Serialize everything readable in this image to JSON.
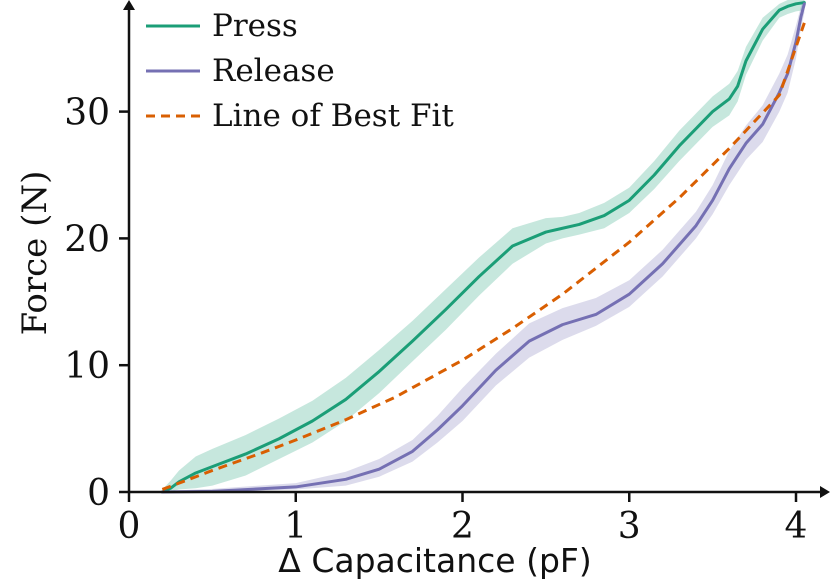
{
  "chart_data": {
    "type": "line",
    "title": "",
    "xlabel": "Δ Capacitance (pF)",
    "ylabel": "Force (N)",
    "xlim": [
      0,
      4.2
    ],
    "ylim": [
      0,
      38.5
    ],
    "xticks": [
      0,
      1,
      2,
      3,
      4
    ],
    "yticks": [
      0,
      10,
      20,
      30
    ],
    "grid": false,
    "legend_position": "top-left",
    "series": [
      {
        "name": "Press",
        "color": "#1b9e77",
        "style": "solid",
        "band": true,
        "x": [
          0.2,
          0.25,
          0.3,
          0.4,
          0.5,
          0.7,
          0.9,
          1.1,
          1.3,
          1.5,
          1.7,
          1.9,
          2.1,
          2.3,
          2.5,
          2.6,
          2.7,
          2.85,
          3.0,
          3.15,
          3.3,
          3.5,
          3.6,
          3.65,
          3.7,
          3.8,
          3.9,
          3.95,
          4.0,
          4.05
        ],
        "y": [
          0,
          0.3,
          0.8,
          1.5,
          2.0,
          3.0,
          4.2,
          5.6,
          7.3,
          9.5,
          11.9,
          14.4,
          17.0,
          19.4,
          20.5,
          20.8,
          21.1,
          21.8,
          23.0,
          25.0,
          27.3,
          30.0,
          31.0,
          32.0,
          34.0,
          36.5,
          38.0,
          38.3,
          38.5,
          38.6
        ],
        "lower": [
          0,
          0.05,
          0.2,
          0.3,
          0.5,
          1.3,
          2.6,
          3.9,
          5.6,
          7.8,
          10.3,
          12.8,
          15.5,
          18.0,
          19.6,
          20.0,
          20.3,
          20.8,
          22.0,
          23.9,
          26.1,
          28.8,
          29.7,
          30.8,
          32.9,
          35.6,
          37.4,
          37.7,
          37.9,
          38.0
        ],
        "upper": [
          0.2,
          0.9,
          1.7,
          2.8,
          3.4,
          4.5,
          5.8,
          7.2,
          9.0,
          11.2,
          13.5,
          16.0,
          18.5,
          20.8,
          21.6,
          21.7,
          22.0,
          22.8,
          24.0,
          26.1,
          28.5,
          31.2,
          32.2,
          33.2,
          35.1,
          37.4,
          38.5,
          38.8,
          39.0,
          39.1
        ]
      },
      {
        "name": "Release",
        "color": "#7570b3",
        "style": "solid",
        "band": true,
        "x": [
          0.2,
          0.5,
          1.0,
          1.3,
          1.5,
          1.7,
          1.85,
          2.0,
          2.2,
          2.4,
          2.6,
          2.8,
          3.0,
          3.2,
          3.4,
          3.5,
          3.6,
          3.65,
          3.7,
          3.8,
          3.9,
          3.95,
          4.0,
          4.03,
          4.05
        ],
        "y": [
          0,
          0.05,
          0.4,
          1.0,
          1.8,
          3.2,
          4.9,
          6.8,
          9.6,
          11.9,
          13.2,
          14.0,
          15.6,
          18.0,
          21.0,
          23.0,
          25.5,
          26.5,
          27.5,
          29.0,
          31.5,
          33.0,
          35.5,
          37.5,
          38.5
        ],
        "lower": [
          0,
          0,
          0.2,
          0.5,
          1.2,
          2.4,
          3.9,
          5.6,
          8.4,
          10.6,
          12.0,
          13.1,
          14.6,
          17.0,
          20.0,
          21.9,
          24.2,
          25.2,
          26.2,
          27.6,
          30.0,
          31.5,
          34.2,
          36.6,
          37.8
        ],
        "upper": [
          0.1,
          0.25,
          0.7,
          1.6,
          2.6,
          4.1,
          6.0,
          8.2,
          10.9,
          13.3,
          14.5,
          15.3,
          16.7,
          19.1,
          22.1,
          24.2,
          26.9,
          27.9,
          28.9,
          30.5,
          33.0,
          34.5,
          36.8,
          38.3,
          38.9
        ]
      },
      {
        "name": "Line of Best Fit",
        "color": "#d95f02",
        "style": "dashed",
        "band": false,
        "x": [
          0.2,
          0.5,
          0.8,
          1.0,
          1.3,
          1.6,
          2.0,
          2.3,
          2.6,
          3.0,
          3.3,
          3.6,
          3.9,
          4.05
        ],
        "y": [
          0.2,
          1.7,
          3.1,
          4.1,
          5.7,
          7.5,
          10.4,
          12.9,
          15.6,
          19.7,
          23.2,
          27.1,
          31.3,
          37.0
        ]
      }
    ]
  }
}
